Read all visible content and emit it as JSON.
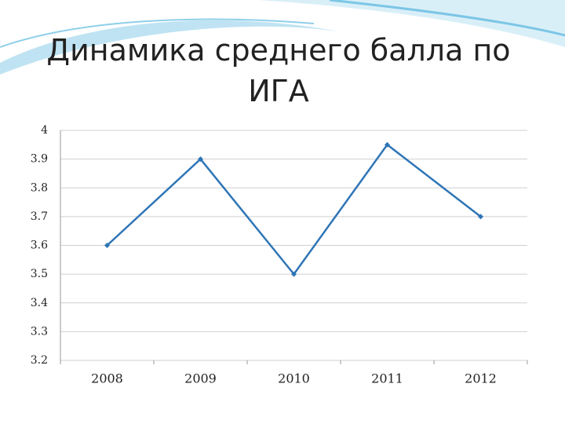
{
  "chart_data": {
    "type": "line",
    "title": "Динамика среднего балла по ИГА",
    "categories": [
      "2008",
      "2009",
      "2010",
      "2011",
      "2012"
    ],
    "values": [
      3.6,
      3.9,
      3.5,
      3.95,
      3.7
    ],
    "color": "#2e75b6",
    "ylim": [
      3.2,
      4
    ],
    "yticks": [
      3.2,
      3.3,
      3.4,
      3.5,
      3.6,
      3.7,
      3.8,
      3.9,
      4
    ],
    "grid": true
  }
}
